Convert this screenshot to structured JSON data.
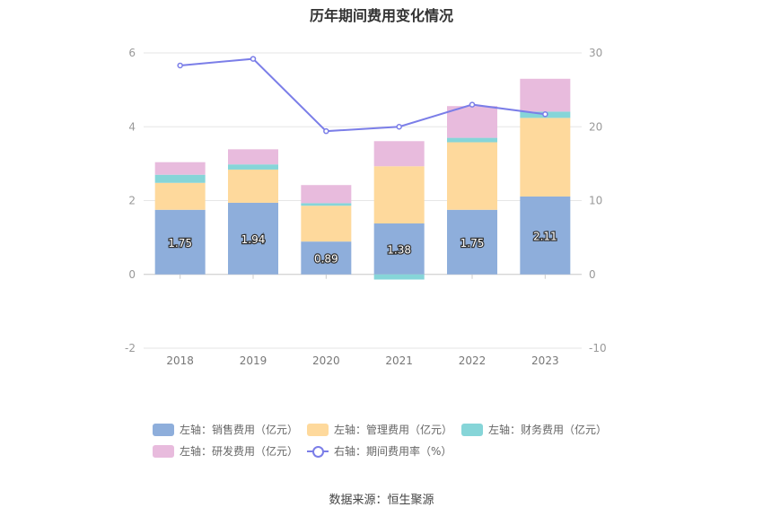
{
  "chart_data": {
    "type": "bar",
    "title": "历年期间费用变化情况",
    "categories": [
      "2018",
      "2019",
      "2020",
      "2021",
      "2022",
      "2023"
    ],
    "series": [
      {
        "name": "左轴：销售费用（亿元）",
        "axis": "left",
        "color": "#8eaedb",
        "values": [
          1.75,
          1.94,
          0.89,
          1.38,
          1.75,
          2.11
        ]
      },
      {
        "name": "左轴：管理费用（亿元）",
        "axis": "left",
        "color": "#fed99c",
        "values": [
          0.73,
          0.9,
          0.97,
          1.55,
          1.83,
          2.13
        ]
      },
      {
        "name": "左轴：财务费用（亿元）",
        "axis": "left",
        "color": "#86d5d8",
        "values": [
          0.22,
          0.14,
          0.07,
          -0.14,
          0.12,
          0.17
        ]
      },
      {
        "name": "左轴：研发费用（亿元）",
        "axis": "left",
        "color": "#e8bbdd",
        "values": [
          0.34,
          0.41,
          0.49,
          0.68,
          0.86,
          0.89
        ]
      },
      {
        "name": "右轴：期间费用率（%）",
        "axis": "right",
        "type": "line",
        "color": "#7b7ee8",
        "values": [
          28.3,
          29.2,
          19.4,
          20.0,
          23.0,
          21.7
        ]
      }
    ],
    "data_labels": [
      "1.75",
      "1.94",
      "0.89",
      "1.38",
      "1.75",
      "2.11"
    ],
    "left_axis": {
      "ylim": [
        -2,
        6
      ],
      "ticks": [
        "-2",
        "0",
        "2",
        "4",
        "6"
      ]
    },
    "right_axis": {
      "ylim": [
        -10,
        30
      ],
      "ticks": [
        "-10",
        "0",
        "10",
        "20",
        "30"
      ]
    },
    "grid": true,
    "legend_position": "bottom",
    "source": "数据来源：恒生聚源"
  }
}
